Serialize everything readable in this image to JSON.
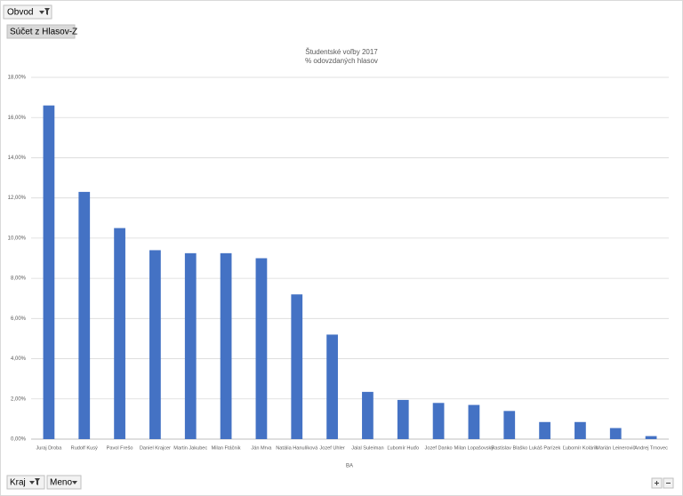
{
  "pivot": {
    "filter_field": "Obvod",
    "value_field": "Súčet z Hlasov-Z",
    "axis_fields": [
      "Kraj",
      "Meno"
    ]
  },
  "chart_data": {
    "type": "bar",
    "title": "Študentské voľby 2017",
    "subtitle": "% odovzdaných hlasov",
    "x_label": "BA",
    "categories": [
      "Juraj Droba",
      "Rudolf Kusý",
      "Pavol Frešo",
      "Daniel Krajcer",
      "Martin Jakubec",
      "Milan Ftáčnik",
      "Ján Mrva",
      "Natália Hanulíková",
      "Jozef Uhler",
      "Jalal Suleiman",
      "Ľubomír Huďo",
      "Jozef Danko",
      "Milan Lopašovský",
      "Rastislav Blaško",
      "Lukáš Parízek",
      "Ľubomír Kolárik",
      "Marián Leinerovič",
      "Andrej Trnovec"
    ],
    "values": [
      16.6,
      12.3,
      10.5,
      9.4,
      9.25,
      9.25,
      9.0,
      7.2,
      5.2,
      2.35,
      1.95,
      1.8,
      1.7,
      1.4,
      0.85,
      0.85,
      0.55,
      0.15
    ],
    "color": "#4472c4",
    "ylim": [
      0,
      18
    ],
    "yticks": [
      {
        "value": 0,
        "label": "0,00%"
      },
      {
        "value": 2,
        "label": "2,00%"
      },
      {
        "value": 4,
        "label": "4,00%"
      },
      {
        "value": 6,
        "label": "6,00%"
      },
      {
        "value": 8,
        "label": "8,00%"
      },
      {
        "value": 10,
        "label": "10,00%"
      },
      {
        "value": 12,
        "label": "12,00%"
      },
      {
        "value": 14,
        "label": "14,00%"
      },
      {
        "value": 16,
        "label": "16,00%"
      },
      {
        "value": 18,
        "label": "18,00%"
      }
    ],
    "grid": true
  }
}
